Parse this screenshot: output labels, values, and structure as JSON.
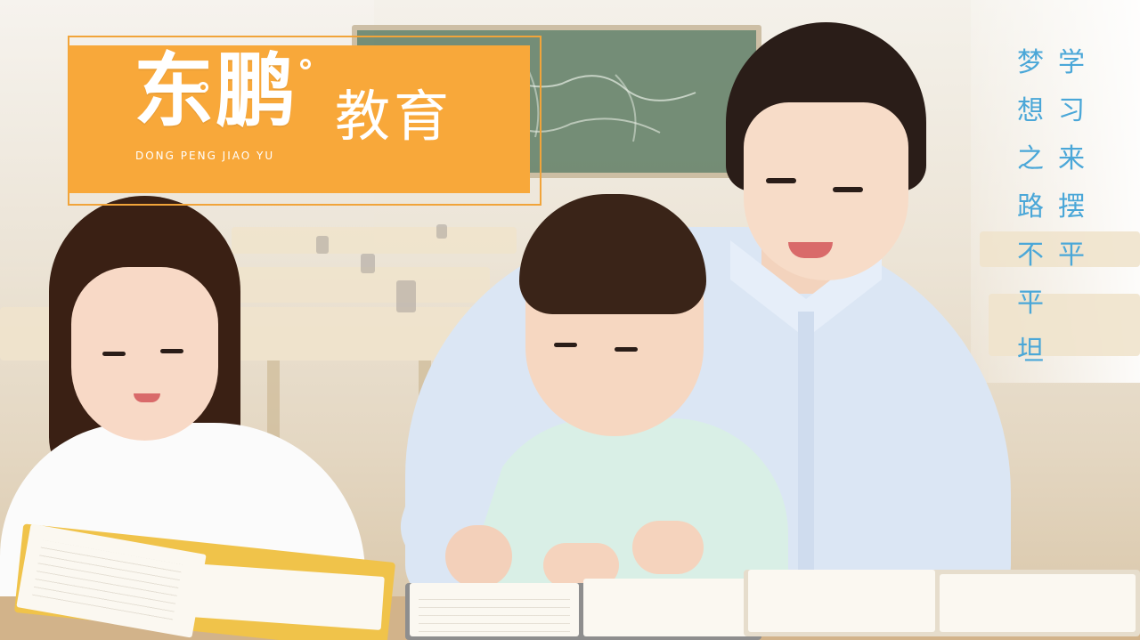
{
  "logo": {
    "brand": "东鹏",
    "subtitle": "教育",
    "pinyin": "DONG PENG JIAO YU"
  },
  "slogan": {
    "line1": [
      "学",
      "习",
      "来",
      "摆",
      "平"
    ],
    "line2": [
      "梦",
      "想",
      "之",
      "路",
      "不",
      "平",
      "坦"
    ]
  },
  "colors": {
    "banner": "#f8a83a",
    "slogan_text": "#4aa7d8",
    "logo_text": "#ffffff"
  }
}
